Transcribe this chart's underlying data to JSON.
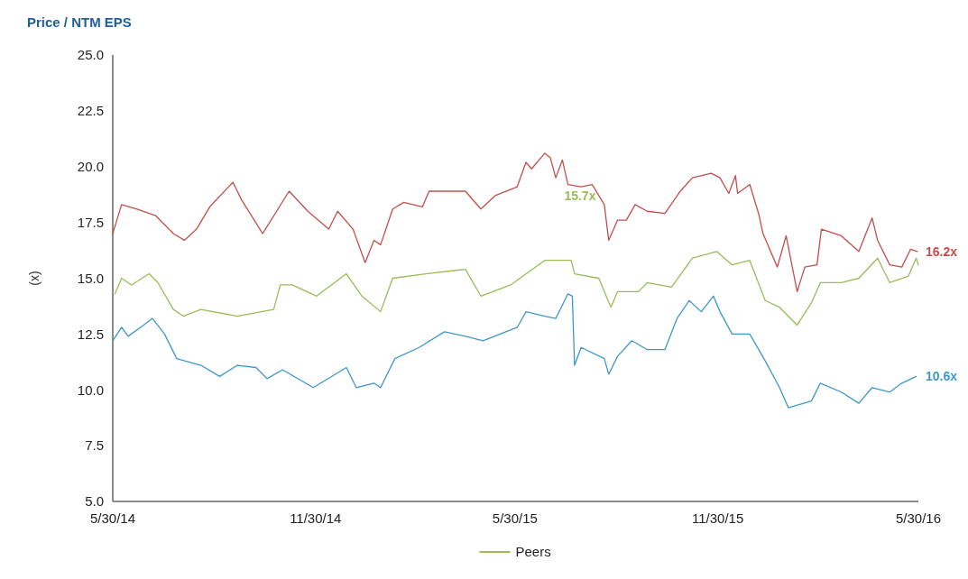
{
  "chart_data": {
    "type": "line",
    "title": "Price / NTM EPS",
    "ylabel": "(x)",
    "xlim": [
      "2014-05-30",
      "2016-05-30"
    ],
    "xticks": [
      {
        "value": "2014-05-30",
        "label": "5/30/14"
      },
      {
        "value": "2014-11-30",
        "label": "11/30/14"
      },
      {
        "value": "2015-05-30",
        "label": "5/30/15"
      },
      {
        "value": "2015-11-30",
        "label": "11/30/15"
      },
      {
        "value": "2016-05-30",
        "label": "5/30/16"
      }
    ],
    "ylim": [
      5,
      25
    ],
    "yticks": [
      {
        "value": 5,
        "label": "5.0"
      },
      {
        "value": 7.5,
        "label": "7.5"
      },
      {
        "value": 10,
        "label": "10.0"
      },
      {
        "value": 12.5,
        "label": "12.5"
      },
      {
        "value": 15,
        "label": "15.0"
      },
      {
        "value": 17.5,
        "label": "17.5"
      },
      {
        "value": 20,
        "label": "20.0"
      },
      {
        "value": 22.5,
        "label": "22.5"
      },
      {
        "value": 25,
        "label": "25.0"
      }
    ],
    "grid": false,
    "legend": "bottom",
    "line_style": "solid",
    "marker": "none",
    "series": [
      {
        "color": "#3f97c9",
        "x": [
          "2014-05-30",
          "2014-06-07",
          "2014-06-13",
          "2014-06-27",
          "2014-07-05",
          "2014-07-16",
          "2014-07-27",
          "2014-08-18",
          "2014-09-04",
          "2014-09-20",
          "2014-10-07",
          "2014-10-17",
          "2014-10-31",
          "2014-11-28",
          "2014-12-28",
          "2015-01-06",
          "2015-01-22",
          "2015-01-28",
          "2015-02-10",
          "2015-03-04",
          "2015-03-27",
          "2015-04-15",
          "2015-05-01",
          "2015-06-01",
          "2015-06-09",
          "2015-06-26",
          "2015-07-06",
          "2015-07-17",
          "2015-07-21",
          "2015-07-23",
          "2015-07-29",
          "2015-08-19",
          "2015-08-23",
          "2015-08-31",
          "2015-09-13",
          "2015-09-27",
          "2015-10-13",
          "2015-10-24",
          "2015-11-04",
          "2015-11-15",
          "2015-11-26",
          "2015-12-02",
          "2015-12-13",
          "2015-12-29",
          "2016-01-12",
          "2016-01-25",
          "2016-02-02",
          "2016-02-23",
          "2016-03-02",
          "2016-03-21",
          "2016-04-06",
          "2016-04-18",
          "2016-05-04",
          "2016-05-15",
          "2016-05-28"
        ],
        "values": [
          12.2,
          12.8,
          12.4,
          12.9,
          13.2,
          12.5,
          11.4,
          11.1,
          10.6,
          11.1,
          11.0,
          10.5,
          10.9,
          10.1,
          11.0,
          10.1,
          10.3,
          10.1,
          11.4,
          11.9,
          12.6,
          12.4,
          12.2,
          12.8,
          13.5,
          13.3,
          13.2,
          14.3,
          14.2,
          11.1,
          11.9,
          11.4,
          10.7,
          11.5,
          12.2,
          11.8,
          11.8,
          13.2,
          14.0,
          13.5,
          14.2,
          13.5,
          12.5,
          12.5,
          11.3,
          10.1,
          9.2,
          9.5,
          10.3,
          9.9,
          9.4,
          10.1,
          9.9,
          10.3,
          10.6
        ]
      },
      {
        "name": "Peers",
        "color": "#9bbb59",
        "x": [
          "2014-06-01",
          "2014-06-07",
          "2014-06-16",
          "2014-07-02",
          "2014-07-10",
          "2014-07-24",
          "2014-08-02",
          "2014-08-18",
          "2014-09-20",
          "2014-10-23",
          "2014-10-29",
          "2014-11-09",
          "2014-12-01",
          "2014-12-28",
          "2015-01-11",
          "2015-01-28",
          "2015-02-08",
          "2015-03-10",
          "2015-04-15",
          "2015-04-29",
          "2015-05-26",
          "2015-06-26",
          "2015-07-12",
          "2015-07-20",
          "2015-07-23",
          "2015-08-14",
          "2015-08-25",
          "2015-08-31",
          "2015-09-19",
          "2015-09-27",
          "2015-10-19",
          "2015-11-07",
          "2015-11-29",
          "2015-12-13",
          "2015-12-29",
          "2016-01-12",
          "2016-01-25",
          "2016-02-10",
          "2016-02-23",
          "2016-03-02",
          "2016-03-21",
          "2016-04-06",
          "2016-04-23",
          "2016-05-04",
          "2016-05-21",
          "2016-05-28",
          "2016-05-30"
        ],
        "values": [
          14.3,
          15.0,
          14.7,
          15.2,
          14.8,
          13.6,
          13.3,
          13.6,
          13.3,
          13.6,
          14.7,
          14.7,
          14.2,
          15.2,
          14.2,
          13.5,
          15.0,
          15.2,
          15.4,
          14.2,
          14.7,
          15.8,
          15.8,
          15.8,
          15.2,
          15.0,
          13.7,
          14.4,
          14.4,
          14.8,
          14.6,
          15.9,
          16.2,
          15.6,
          15.8,
          14.0,
          13.7,
          12.9,
          13.9,
          14.8,
          14.8,
          15.0,
          15.9,
          14.8,
          15.1,
          15.9,
          15.6
        ]
      },
      {
        "color": "#c0504d",
        "x": [
          "2014-05-30",
          "2014-06-07",
          "2014-06-21",
          "2014-07-08",
          "2014-07-24",
          "2014-08-03",
          "2014-08-14",
          "2014-08-26",
          "2014-09-16",
          "2014-09-24",
          "2014-10-13",
          "2014-11-06",
          "2014-11-23",
          "2014-12-12",
          "2014-12-20",
          "2015-01-03",
          "2015-01-14",
          "2015-01-22",
          "2015-01-28",
          "2015-02-08",
          "2015-02-18",
          "2015-03-07",
          "2015-03-13",
          "2015-04-15",
          "2015-04-29",
          "2015-05-12",
          "2015-06-01",
          "2015-06-09",
          "2015-06-14",
          "2015-06-26",
          "2015-07-01",
          "2015-07-06",
          "2015-07-12",
          "2015-07-17",
          "2015-07-29",
          "2015-08-08",
          "2015-08-19",
          "2015-08-23",
          "2015-08-31",
          "2015-09-08",
          "2015-09-16",
          "2015-09-27",
          "2015-10-13",
          "2015-10-27",
          "2015-11-07",
          "2015-11-24",
          "2015-12-02",
          "2015-12-10",
          "2015-12-16",
          "2015-12-18",
          "2015-12-29",
          "2016-01-06",
          "2016-01-10",
          "2016-01-23",
          "2016-01-31",
          "2016-02-10",
          "2016-02-17",
          "2016-02-28",
          "2016-03-03",
          "2016-03-21",
          "2016-04-06",
          "2016-04-18",
          "2016-04-23",
          "2016-05-04",
          "2016-05-15",
          "2016-05-23",
          "2016-05-29"
        ],
        "values": [
          17.0,
          18.3,
          18.1,
          17.8,
          17.0,
          16.7,
          17.2,
          18.2,
          19.3,
          18.5,
          17.0,
          18.9,
          18.0,
          17.2,
          18.0,
          17.2,
          15.7,
          16.7,
          16.5,
          18.1,
          18.4,
          18.2,
          18.9,
          18.9,
          18.1,
          18.7,
          19.1,
          20.2,
          19.9,
          20.6,
          20.4,
          19.5,
          20.3,
          19.2,
          19.1,
          19.2,
          18.3,
          16.7,
          17.6,
          17.6,
          18.3,
          18.0,
          17.9,
          18.9,
          19.5,
          19.7,
          19.5,
          18.8,
          19.6,
          18.8,
          19.2,
          17.9,
          17.0,
          15.5,
          16.9,
          14.4,
          15.5,
          15.6,
          17.2,
          16.9,
          16.2,
          17.7,
          16.7,
          15.6,
          15.5,
          16.3,
          16.2
        ]
      }
    ],
    "annotations": [
      {
        "text": "10.6x",
        "x": "2016-05-30",
        "y": 10.6
      },
      "15.7x",
      {
        "text": "16.2x",
        "x": "2016-05-30",
        "y": 16.2
      }
    ]
  }
}
